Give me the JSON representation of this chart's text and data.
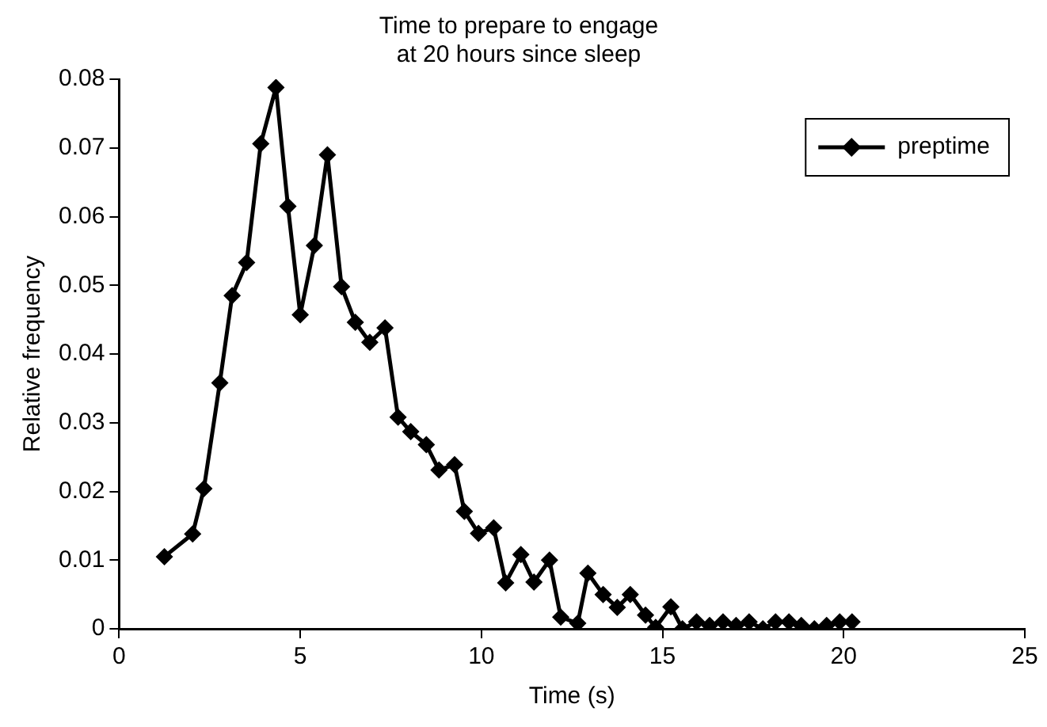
{
  "chart_data": {
    "type": "line",
    "title": "Time to prepare to engage\nat 20 hours since sleep",
    "xlabel": "Time (s)",
    "ylabel": "Relative frequency",
    "x": [
      1.25,
      2.03,
      2.34,
      2.78,
      3.12,
      3.52,
      3.91,
      4.33,
      4.66,
      5.0,
      5.39,
      5.75,
      6.14,
      6.52,
      6.92,
      7.34,
      7.7,
      8.05,
      8.48,
      8.83,
      9.26,
      9.53,
      9.92,
      10.34,
      10.67,
      11.09,
      11.45,
      11.88,
      12.19,
      12.66,
      12.94,
      13.36,
      13.75,
      14.11,
      14.53,
      14.81,
      15.23,
      15.55,
      15.94,
      16.3,
      16.67,
      17.03,
      17.39,
      17.77,
      18.12,
      18.49,
      18.83,
      19.19,
      19.53,
      19.89,
      20.23
    ],
    "series": [
      {
        "name": "preptime",
        "color": "#000000",
        "values": [
          0.0105,
          0.0138,
          0.0204,
          0.0358,
          0.0485,
          0.0533,
          0.0706,
          0.0788,
          0.0615,
          0.0457,
          0.0558,
          0.069,
          0.0498,
          0.0446,
          0.0417,
          0.0438,
          0.0308,
          0.0287,
          0.0268,
          0.0231,
          0.0239,
          0.0171,
          0.0139,
          0.0147,
          0.0067,
          0.0108,
          0.0068,
          0.01,
          0.0017,
          0.0008,
          0.0081,
          0.005,
          0.0031,
          0.005,
          0.002,
          0.0002,
          0.0032,
          0,
          0.001,
          0.0005,
          0.001,
          0.0005,
          0.001,
          0,
          0.001,
          0.001,
          0.0005,
          0,
          0.0005,
          0.001,
          0.001
        ]
      }
    ],
    "xlim": [
      0,
      25
    ],
    "xticks": [
      0,
      5,
      10,
      15,
      20,
      25
    ],
    "ylim": [
      0,
      0.08
    ],
    "yticks": [
      0,
      0.01,
      0.02,
      0.03,
      0.04,
      0.05,
      0.06,
      0.07,
      0.08
    ],
    "grid": false,
    "legend": "top right",
    "marker": "diamond",
    "line_style": "solid"
  }
}
